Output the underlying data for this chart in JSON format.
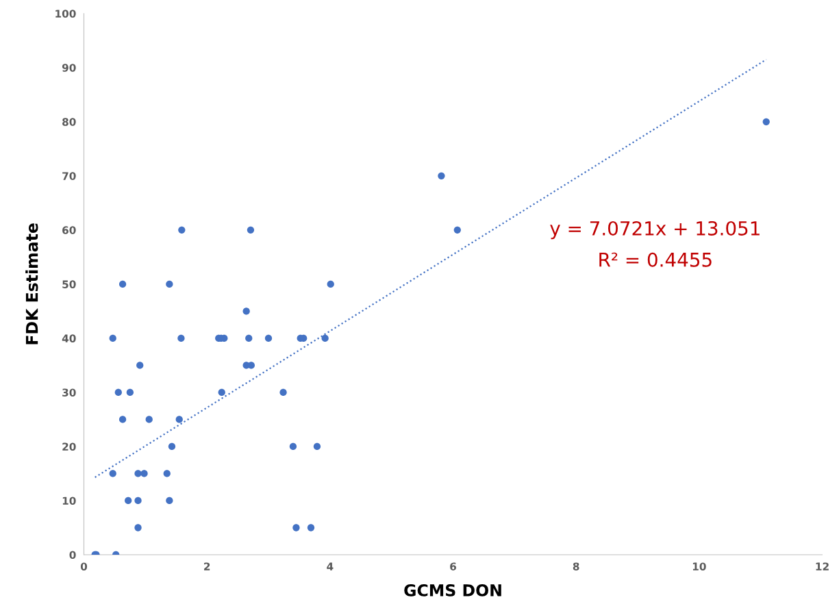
{
  "chart_data": {
    "type": "scatter",
    "xlabel": "GCMS DON",
    "ylabel": "FDK Estimate",
    "xlim": [
      0,
      12
    ],
    "xticks": [
      0,
      2,
      4,
      6,
      8,
      10,
      12
    ],
    "ylim": [
      0,
      100
    ],
    "yticks": [
      0,
      10,
      20,
      30,
      40,
      50,
      60,
      70,
      80,
      90,
      100
    ],
    "grid": false,
    "marker": "circle",
    "series": [
      {
        "color": "#4472c4",
        "x": [
          0.18,
          0.2,
          0.52,
          0.88,
          3.45,
          3.69,
          0.72,
          0.88,
          1.39,
          0.47,
          0.88,
          0.98,
          1.35,
          1.43,
          3.4,
          3.79,
          0.63,
          1.06,
          1.55,
          0.56,
          0.75,
          2.24,
          3.24,
          0.91,
          2.64,
          2.72,
          0.47,
          1.58,
          2.19,
          2.23,
          2.28,
          2.68,
          3.0,
          3.52,
          3.57,
          3.92,
          2.64,
          0.63,
          1.39,
          4.01,
          1.59,
          2.71,
          6.07,
          5.81,
          11.09
        ],
        "values": [
          0,
          0,
          0,
          5,
          5,
          5,
          10,
          10,
          10,
          15,
          15,
          15,
          15,
          20,
          20,
          20,
          25,
          25,
          25,
          30,
          30,
          30,
          30,
          35,
          35,
          35,
          40,
          40,
          40,
          40,
          40,
          40,
          40,
          40,
          40,
          40,
          45,
          50,
          50,
          50,
          60,
          60,
          60,
          70,
          80
        ]
      },
      {
        "type": "line",
        "color": "#4472c4",
        "line_style": "dotted",
        "marker": "none",
        "x": [
          0.18,
          11.09
        ],
        "values": [
          14.3,
          91.5
        ]
      }
    ],
    "annotations": [
      "y = 7.0721x + 13.051",
      "R² = 0.4455"
    ]
  }
}
